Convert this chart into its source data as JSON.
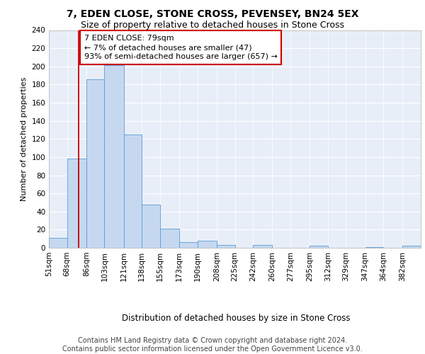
{
  "title1": "7, EDEN CLOSE, STONE CROSS, PEVENSEY, BN24 5EX",
  "title2": "Size of property relative to detached houses in Stone Cross",
  "xlabel": "Distribution of detached houses by size in Stone Cross",
  "ylabel": "Number of detached properties",
  "bar_edges": [
    51,
    68,
    86,
    103,
    121,
    138,
    155,
    173,
    190,
    208,
    225,
    242,
    260,
    277,
    295,
    312,
    329,
    347,
    364,
    382,
    399
  ],
  "bar_heights": [
    11,
    98,
    186,
    201,
    125,
    48,
    21,
    6,
    8,
    3,
    0,
    3,
    0,
    0,
    2,
    0,
    0,
    1,
    0,
    2
  ],
  "bar_color": "#c5d8f0",
  "bar_edge_color": "#5b9bd5",
  "property_line_x": 79,
  "property_line_color": "#cc0000",
  "annotation_line1": "7 EDEN CLOSE: 79sqm",
  "annotation_line2": "← 7% of detached houses are smaller (47)",
  "annotation_line3": "93% of semi-detached houses are larger (657) →",
  "annotation_box_color": "#ffffff",
  "annotation_box_edge": "#cc0000",
  "ylim": [
    0,
    240
  ],
  "yticks": [
    0,
    20,
    40,
    60,
    80,
    100,
    120,
    140,
    160,
    180,
    200,
    220,
    240
  ],
  "background_color": "#e8eef8",
  "footer_text": "Contains HM Land Registry data © Crown copyright and database right 2024.\nContains public sector information licensed under the Open Government Licence v3.0.",
  "title1_fontsize": 10,
  "title2_fontsize": 9,
  "xlabel_fontsize": 8.5,
  "ylabel_fontsize": 8,
  "tick_fontsize": 7.5,
  "annotation_fontsize": 8,
  "footer_fontsize": 7
}
